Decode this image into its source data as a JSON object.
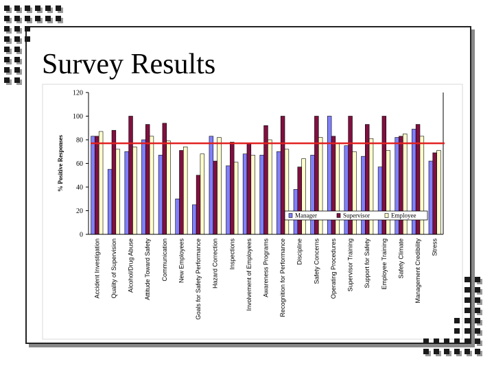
{
  "slide": {
    "title": "Survey Results"
  },
  "chart_data": {
    "type": "bar",
    "title": "",
    "xlabel": "",
    "ylabel": "% Positive Responses",
    "ylim": [
      0,
      120
    ],
    "yticks": [
      0,
      20,
      40,
      60,
      80,
      100,
      120
    ],
    "reference_line": 77,
    "reference_line_color": "#e02020",
    "legend_position": "bottom-right",
    "categories": [
      "Accident Investigation",
      "Quality of Supervision",
      "Alcohol/Drug Abuse",
      "Attitude Toward Safety",
      "Communication",
      "New Employees",
      "Goals for Safety Performance",
      "Hazard Correction",
      "Inspections",
      "Involvement of Employees",
      "Awareness Programs",
      "Recognition for Performance",
      "Discipline",
      "Safety Concerns",
      "Operating Procedures",
      "Supervisor Training",
      "Support for Safety",
      "Employee Training",
      "Safety Climate",
      "Management Credibility",
      "Stress"
    ],
    "series": [
      {
        "name": "Manager",
        "color": "#8080ff",
        "values": [
          83,
          55,
          70,
          80,
          67,
          30,
          25,
          83,
          58,
          68,
          67,
          70,
          38,
          67,
          100,
          75,
          66,
          57,
          82,
          89,
          62
        ]
      },
      {
        "name": "Supervisor",
        "color": "#801040",
        "values": [
          83,
          88,
          100,
          93,
          94,
          71,
          50,
          62,
          78,
          77,
          92,
          100,
          57,
          100,
          83,
          100,
          93,
          100,
          83,
          93,
          69
        ]
      },
      {
        "name": "Employee",
        "color": "#ffffcc",
        "values": [
          87,
          72,
          74,
          83,
          79,
          74,
          68,
          82,
          61,
          67,
          80,
          72,
          64,
          82,
          77,
          70,
          81,
          71,
          85,
          83,
          71
        ]
      }
    ]
  }
}
